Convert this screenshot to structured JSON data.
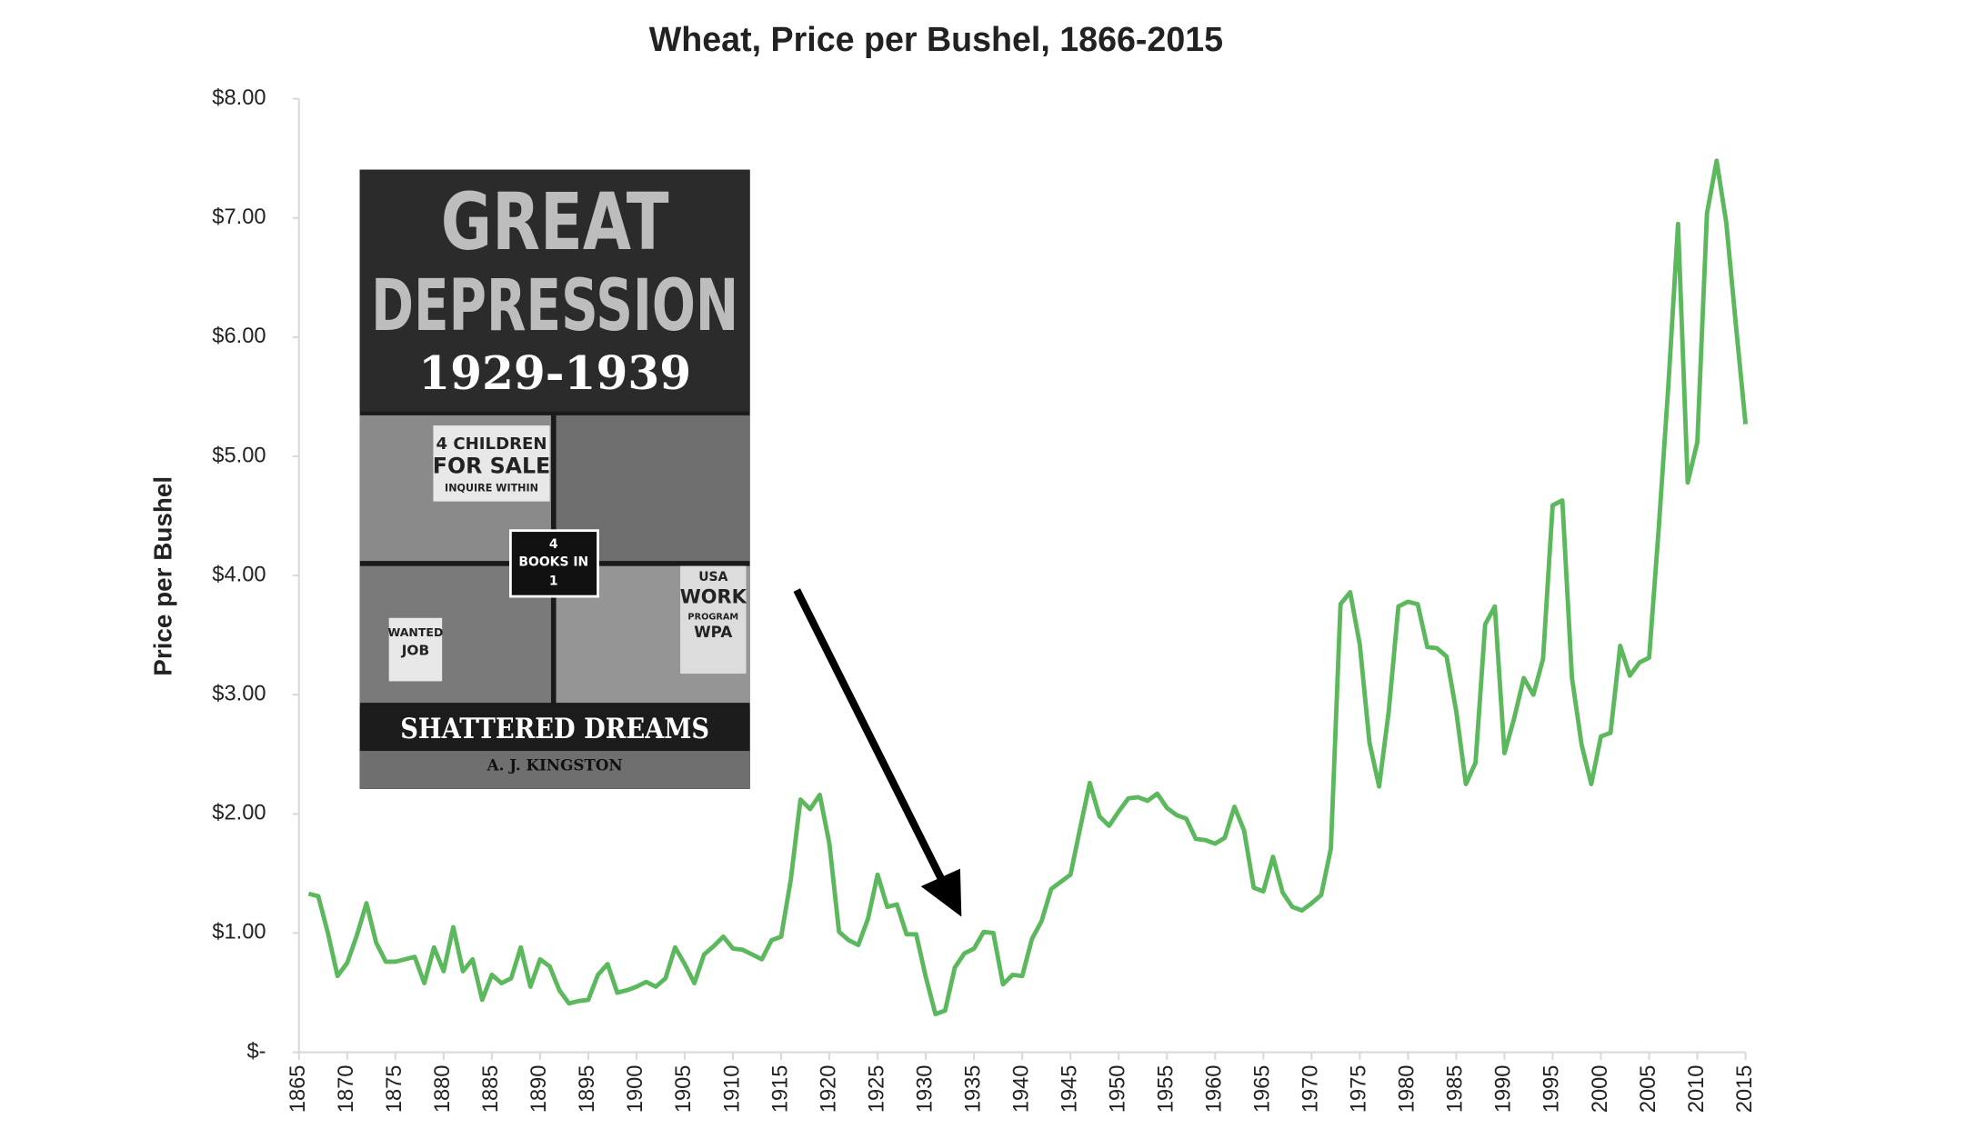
{
  "chart_data": {
    "type": "line",
    "title": "Wheat, Price per Bushel, 1866-2015",
    "y_label": "Price per Bushel",
    "color": "#5cb85c",
    "xlim": [
      1865,
      2015
    ],
    "xticks": [
      1865,
      1870,
      1875,
      1880,
      1885,
      1890,
      1895,
      1900,
      1905,
      1910,
      1915,
      1920,
      1925,
      1930,
      1935,
      1940,
      1945,
      1950,
      1955,
      1960,
      1965,
      1970,
      1975,
      1980,
      1985,
      1990,
      1995,
      2000,
      2005,
      2010,
      2015
    ],
    "ylim": [
      0,
      8
    ],
    "yticks": [
      {
        "value": 0,
        "label": "$-"
      },
      {
        "value": 1,
        "label": "$1.00"
      },
      {
        "value": 2,
        "label": "$2.00"
      },
      {
        "value": 3,
        "label": "$3.00"
      },
      {
        "value": 4,
        "label": "$4.00"
      },
      {
        "value": 5,
        "label": "$5.00"
      },
      {
        "value": 6,
        "label": "$6.00"
      },
      {
        "value": 7,
        "label": "$7.00"
      },
      {
        "value": 8,
        "label": "$8.00"
      }
    ],
    "x": [
      1866,
      1867,
      1868,
      1869,
      1870,
      1871,
      1872,
      1873,
      1874,
      1875,
      1876,
      1877,
      1878,
      1879,
      1880,
      1881,
      1882,
      1883,
      1884,
      1885,
      1886,
      1887,
      1888,
      1889,
      1890,
      1891,
      1892,
      1893,
      1894,
      1895,
      1896,
      1897,
      1898,
      1899,
      1900,
      1901,
      1902,
      1903,
      1904,
      1905,
      1906,
      1907,
      1908,
      1909,
      1910,
      1911,
      1912,
      1913,
      1914,
      1915,
      1916,
      1917,
      1918,
      1919,
      1920,
      1921,
      1922,
      1923,
      1924,
      1925,
      1926,
      1927,
      1928,
      1929,
      1930,
      1931,
      1932,
      1933,
      1934,
      1935,
      1936,
      1937,
      1938,
      1939,
      1940,
      1941,
      1942,
      1943,
      1944,
      1945,
      1946,
      1947,
      1948,
      1949,
      1950,
      1951,
      1952,
      1953,
      1954,
      1955,
      1956,
      1957,
      1958,
      1959,
      1960,
      1961,
      1962,
      1963,
      1964,
      1965,
      1966,
      1967,
      1968,
      1969,
      1970,
      1971,
      1972,
      1973,
      1974,
      1975,
      1976,
      1977,
      1978,
      1979,
      1980,
      1981,
      1982,
      1983,
      1984,
      1985,
      1986,
      1987,
      1988,
      1989,
      1990,
      1991,
      1992,
      1993,
      1994,
      1995,
      1996,
      1997,
      1998,
      1999,
      2000,
      2001,
      2002,
      2003,
      2004,
      2005,
      2006,
      2007,
      2008,
      2009,
      2010,
      2011,
      2012,
      2013,
      2014,
      2015
    ],
    "values": [
      1.33,
      1.31,
      1.0,
      0.64,
      0.75,
      0.98,
      1.25,
      0.92,
      0.76,
      0.76,
      0.78,
      0.8,
      0.58,
      0.88,
      0.68,
      1.05,
      0.68,
      0.78,
      0.44,
      0.65,
      0.58,
      0.62,
      0.88,
      0.55,
      0.78,
      0.72,
      0.52,
      0.41,
      0.43,
      0.44,
      0.65,
      0.74,
      0.5,
      0.52,
      0.55,
      0.59,
      0.55,
      0.62,
      0.88,
      0.74,
      0.58,
      0.82,
      0.89,
      0.97,
      0.87,
      0.86,
      0.82,
      0.78,
      0.94,
      0.97,
      1.45,
      2.12,
      2.04,
      2.16,
      1.75,
      1.01,
      0.94,
      0.9,
      1.12,
      1.49,
      1.22,
      1.24,
      0.99,
      0.99,
      0.63,
      0.32,
      0.35,
      0.71,
      0.83,
      0.87,
      1.01,
      1.0,
      0.57,
      0.65,
      0.64,
      0.95,
      1.1,
      1.37,
      1.43,
      1.49,
      1.88,
      2.26,
      1.98,
      1.9,
      2.02,
      2.13,
      2.14,
      2.11,
      2.17,
      2.05,
      1.99,
      1.96,
      1.79,
      1.78,
      1.75,
      1.8,
      2.06,
      1.86,
      1.38,
      1.35,
      1.64,
      1.34,
      1.22,
      1.19,
      1.25,
      1.32,
      1.71,
      3.76,
      3.86,
      3.42,
      2.6,
      2.23,
      2.86,
      3.74,
      3.78,
      3.76,
      3.4,
      3.39,
      3.32,
      2.86,
      2.25,
      2.43,
      3.59,
      3.74,
      2.51,
      2.8,
      3.14,
      3.0,
      3.3,
      4.59,
      4.63,
      3.14,
      2.58,
      2.25,
      2.65,
      2.68,
      3.41,
      3.16,
      3.27,
      3.31,
      4.4,
      5.6,
      6.95,
      4.78,
      5.12,
      7.04,
      7.48,
      6.96,
      6.1,
      5.27
    ]
  },
  "inset": {
    "title_1": "GREAT",
    "title_2": "DEPRESSION",
    "years": "1929-1939",
    "sign_1": "4 CHILDREN",
    "sign_2": "FOR SALE",
    "sign_3": "INQUIRE WITHIN",
    "badge_1": "4",
    "badge_2": "BOOKS IN",
    "badge_3": "1",
    "wpa_1": "USA",
    "wpa_2": "WORK",
    "wpa_3": "PROGRAM",
    "wpa_4": "WPA",
    "job_1": "WANTED",
    "job_2": "JOB",
    "subtitle": "SHATTERED DREAMS",
    "author": "A. J. KINGSTON"
  }
}
